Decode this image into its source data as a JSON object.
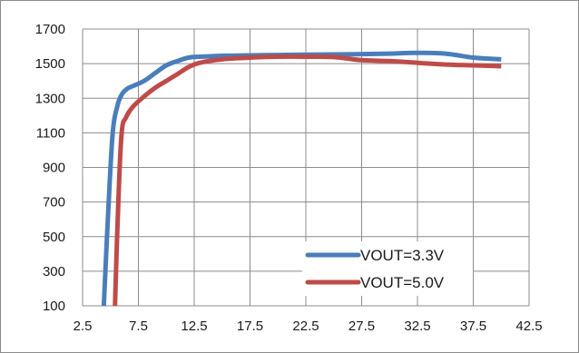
{
  "chart_data": {
    "type": "line",
    "title": "",
    "xlabel": "",
    "ylabel": "",
    "xlim": [
      2.5,
      42.5
    ],
    "ylim": [
      100,
      1700
    ],
    "x_ticks": [
      "2.5",
      "7.5",
      "12.5",
      "17.5",
      "22.5",
      "27.5",
      "32.5",
      "37.5",
      "42.5"
    ],
    "y_ticks": [
      "1700",
      "1500",
      "1300",
      "1100",
      "900",
      "700",
      "500",
      "300",
      "100"
    ],
    "grid": true,
    "legend_position": "bottom-right",
    "series": [
      {
        "name": "VOUT=3.3V",
        "color": "#4a7ebb",
        "x": [
          4.4,
          4.8,
          5.2,
          5.6,
          6.0,
          6.5,
          7.0,
          8.0,
          9.0,
          10.0,
          11.0,
          12.0,
          13.0,
          15.0,
          17.5,
          20.0,
          22.5,
          25.0,
          27.5,
          30.0,
          32.5,
          35.0,
          37.5,
          40.0
        ],
        "y": [
          100,
          650,
          1100,
          1250,
          1320,
          1355,
          1370,
          1400,
          1445,
          1490,
          1515,
          1535,
          1540,
          1545,
          1548,
          1550,
          1552,
          1553,
          1555,
          1558,
          1562,
          1558,
          1535,
          1525
        ]
      },
      {
        "name": "VOUT=5.0V",
        "color": "#be4b48",
        "x": [
          5.4,
          5.7,
          6.0,
          6.4,
          7.0,
          8.0,
          9.0,
          10.0,
          11.0,
          12.0,
          13.0,
          15.0,
          17.5,
          20.0,
          22.5,
          25.0,
          27.5,
          30.0,
          32.5,
          35.0,
          37.5,
          40.0
        ],
        "y": [
          100,
          700,
          1100,
          1190,
          1250,
          1310,
          1360,
          1400,
          1440,
          1480,
          1505,
          1525,
          1535,
          1540,
          1540,
          1538,
          1520,
          1515,
          1505,
          1495,
          1490,
          1485
        ]
      }
    ]
  }
}
